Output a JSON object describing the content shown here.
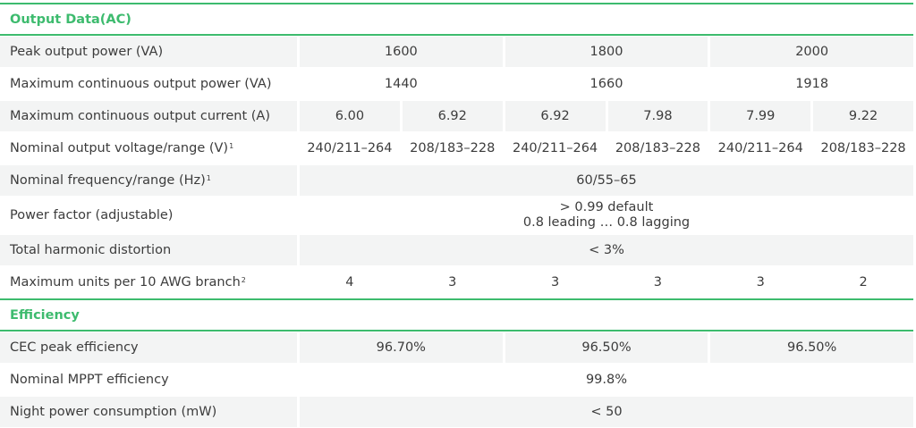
{
  "colors": {
    "accent": "#3dbb6e",
    "row_shade": "#f3f4f4"
  },
  "sections": [
    {
      "title": "Output Data(AC)",
      "rows": [
        {
          "label": "Peak output power (VA)",
          "sup": "",
          "shade": true,
          "cells": [
            {
              "text": "1600",
              "span": 2
            },
            {
              "text": "1800",
              "span": 2
            },
            {
              "text": "2000",
              "span": 2
            }
          ]
        },
        {
          "label": "Maximum continuous output power (VA)",
          "sup": "",
          "shade": false,
          "cells": [
            {
              "text": "1440",
              "span": 2
            },
            {
              "text": "1660",
              "span": 2
            },
            {
              "text": "1918",
              "span": 2
            }
          ]
        },
        {
          "label": "Maximum continuous output current (A)",
          "sup": "",
          "shade": true,
          "cells": [
            {
              "text": "6.00",
              "span": 1
            },
            {
              "text": "6.92",
              "span": 1
            },
            {
              "text": "6.92",
              "span": 1
            },
            {
              "text": "7.98",
              "span": 1
            },
            {
              "text": "7.99",
              "span": 1
            },
            {
              "text": "9.22",
              "span": 1
            }
          ]
        },
        {
          "label": "Nominal output voltage/range (V)",
          "sup": "1",
          "shade": false,
          "cells": [
            {
              "text": "240/211–264",
              "span": 1
            },
            {
              "text": "208/183–228",
              "span": 1
            },
            {
              "text": "240/211–264",
              "span": 1
            },
            {
              "text": "208/183–228",
              "span": 1
            },
            {
              "text": "240/211–264",
              "span": 1
            },
            {
              "text": "208/183–228",
              "span": 1
            }
          ]
        },
        {
          "label": "Nominal frequency/range (Hz)",
          "sup": "1",
          "shade": true,
          "cells": [
            {
              "text": "60/55–65",
              "span": 6
            }
          ]
        },
        {
          "label": "Power factor (adjustable)",
          "sup": "",
          "shade": false,
          "tall": true,
          "cells": [
            {
              "text": "> 0.99 default",
              "text2": "0.8 leading … 0.8 lagging",
              "span": 6
            }
          ]
        },
        {
          "label": "Total harmonic distortion",
          "sup": "",
          "shade": true,
          "cells": [
            {
              "text": "< 3%",
              "span": 6
            }
          ]
        },
        {
          "label": "Maximum units per 10 AWG branch",
          "sup": "2",
          "shade": false,
          "cells": [
            {
              "text": "4",
              "span": 1
            },
            {
              "text": "3",
              "span": 1
            },
            {
              "text": "3",
              "span": 1
            },
            {
              "text": "3",
              "span": 1
            },
            {
              "text": "3",
              "span": 1
            },
            {
              "text": "2",
              "span": 1
            }
          ]
        }
      ]
    },
    {
      "title": "Efficiency",
      "rows": [
        {
          "label": "CEC peak efficiency",
          "sup": "",
          "shade": true,
          "cells": [
            {
              "text": "96.70%",
              "span": 2
            },
            {
              "text": "96.50%",
              "span": 2
            },
            {
              "text": "96.50%",
              "span": 2
            }
          ]
        },
        {
          "label": "Nominal MPPT efficiency",
          "sup": "",
          "shade": false,
          "cells": [
            {
              "text": "99.8%",
              "span": 6
            }
          ]
        },
        {
          "label": "Night power consumption (mW)",
          "sup": "",
          "shade": true,
          "cells": [
            {
              "text": "< 50",
              "span": 6
            }
          ]
        }
      ]
    }
  ]
}
